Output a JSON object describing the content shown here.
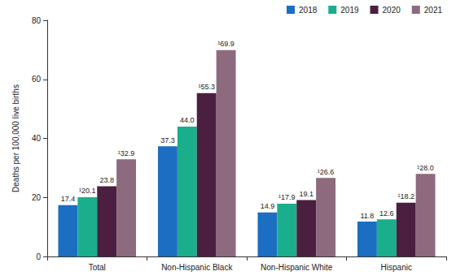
{
  "chart_data": {
    "type": "bar",
    "ylabel": "Deaths per 100,000 live births",
    "categories": [
      "Total",
      "Non-Hispanic Black",
      "Non-Hispanic White",
      "Hispanic"
    ],
    "series": [
      {
        "name": "2018",
        "color": "#1b6ec2",
        "values": [
          17.4,
          37.3,
          14.9,
          11.8
        ],
        "value_labels": [
          "17.4",
          "37.3",
          "14.9",
          "11.8"
        ]
      },
      {
        "name": "2019",
        "color": "#1aae8c",
        "values": [
          20.1,
          44.0,
          17.9,
          12.6
        ],
        "value_labels": [
          "¹20.1",
          "44.0",
          "¹17.9",
          "12.6"
        ]
      },
      {
        "name": "2020",
        "color": "#4b1f3f",
        "values": [
          23.8,
          55.3,
          19.1,
          18.2
        ],
        "value_labels": [
          "23.8",
          "¹55.3",
          "19.1",
          "¹18.2"
        ]
      },
      {
        "name": "2021",
        "color": "#8e6a7e",
        "values": [
          32.9,
          69.9,
          26.6,
          28.0
        ],
        "value_labels": [
          "¹32.9",
          "¹69.9",
          "¹26.6",
          "¹28.0"
        ]
      }
    ],
    "ylim": [
      0,
      80
    ],
    "yticks": [
      0,
      20,
      40,
      60,
      80
    ],
    "grid": false,
    "legend": "top right",
    "data_labels": true
  }
}
